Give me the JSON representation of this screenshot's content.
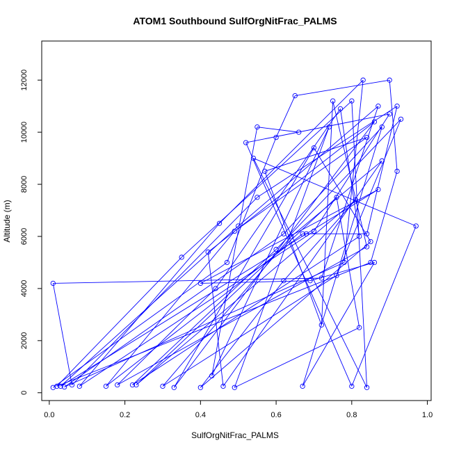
{
  "chart_data": {
    "type": "line",
    "title": "ATOM1 Southbound SulfOrgNitFrac_PALMS",
    "xlabel": "SulfOrgNitFrac_PALMS",
    "ylabel": "Altitude (m)",
    "xlim": [
      -0.02,
      1.01
    ],
    "ylim": [
      -300,
      13500
    ],
    "xticks": [
      0.0,
      0.2,
      0.4,
      0.6,
      0.8,
      1.0
    ],
    "xtick_labels": [
      "0.0",
      "0.2",
      "0.4",
      "0.6",
      "0.8",
      "1.0"
    ],
    "yticks": [
      0,
      2000,
      4000,
      6000,
      8000,
      10000,
      12000
    ],
    "ytick_labels": [
      "0",
      "2000",
      "4000",
      "6000",
      "8000",
      "10000",
      "12000"
    ],
    "grid": false,
    "color": "#0000ff",
    "series": [
      {
        "points": [
          [
            0.01,
            200
          ],
          [
            0.47,
            5000
          ],
          [
            0.6,
            9800
          ],
          [
            0.65,
            11400
          ],
          [
            0.9,
            12000
          ],
          [
            0.92,
            8500
          ],
          [
            0.85,
            5000
          ],
          [
            0.02,
            250
          ],
          [
            0.35,
            5200
          ],
          [
            0.8,
            11200
          ],
          [
            0.84,
            200
          ],
          [
            0.54,
            9000
          ],
          [
            0.97,
            6400
          ],
          [
            0.8,
            250
          ],
          [
            0.52,
            9600
          ],
          [
            0.9,
            10700
          ],
          [
            0.7,
            6200
          ],
          [
            0.08,
            250
          ],
          [
            0.45,
            6500
          ],
          [
            0.83,
            12000
          ],
          [
            0.78,
            5000
          ],
          [
            0.04,
            220
          ],
          [
            0.62,
            6100
          ],
          [
            0.88,
            10200
          ],
          [
            0.67,
            250
          ],
          [
            0.86,
            5000
          ],
          [
            0.69,
            4300
          ],
          [
            0.4,
            4200
          ],
          [
            0.87,
            7800
          ],
          [
            0.68,
            6100
          ],
          [
            0.03,
            250
          ],
          [
            0.5,
            6400
          ],
          [
            0.87,
            11000
          ],
          [
            0.72,
            4400
          ],
          [
            0.01,
            4200
          ],
          [
            0.06,
            300
          ],
          [
            0.55,
            7500
          ],
          [
            0.92,
            11000
          ],
          [
            0.84,
            6100
          ],
          [
            0.67,
            6100
          ],
          [
            0.15,
            250
          ],
          [
            0.49,
            6200
          ],
          [
            0.84,
            9800
          ],
          [
            0.57,
            8500
          ],
          [
            0.72,
            2600
          ],
          [
            0.75,
            11200
          ],
          [
            0.84,
            5600
          ],
          [
            0.18,
            300
          ],
          [
            0.44,
            4000
          ],
          [
            0.77,
            10900
          ],
          [
            0.82,
            6000
          ],
          [
            0.22,
            300
          ],
          [
            0.6,
            5500
          ],
          [
            0.93,
            10500
          ],
          [
            0.76,
            4500
          ],
          [
            0.3,
            250
          ],
          [
            0.64,
            6000
          ],
          [
            0.88,
            8900
          ],
          [
            0.46,
            250
          ],
          [
            0.42,
            5400
          ],
          [
            0.86,
            10400
          ],
          [
            0.33,
            200
          ],
          [
            0.7,
            9400
          ],
          [
            0.85,
            5800
          ],
          [
            0.4,
            200
          ],
          [
            0.62,
            4300
          ],
          [
            0.81,
            7400
          ],
          [
            0.23,
            300
          ],
          [
            0.76,
            7500
          ],
          [
            0.82,
            2500
          ],
          [
            0.49,
            200
          ],
          [
            0.74,
            10200
          ],
          [
            0.43,
            650
          ],
          [
            0.55,
            10200
          ],
          [
            0.66,
            10000
          ]
        ]
      }
    ]
  }
}
